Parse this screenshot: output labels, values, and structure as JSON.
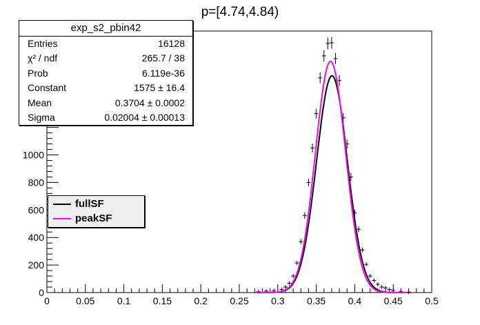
{
  "chart_data": {
    "type": "histogram",
    "title": "p=[4.74,4.84)",
    "xlabel": "",
    "ylabel": "",
    "xlim": [
      0,
      0.5
    ],
    "ylim": [
      0,
      1900
    ],
    "x_ticks": [
      "0",
      "0.05",
      "0.1",
      "0.15",
      "0.2",
      "0.25",
      "0.3",
      "0.35",
      "0.4",
      "0.45",
      "0.5"
    ],
    "y_ticks": [
      "0",
      "200",
      "400",
      "600",
      "800",
      "1000"
    ],
    "histogram": {
      "x": [
        0.275,
        0.285,
        0.295,
        0.305,
        0.31,
        0.315,
        0.32,
        0.325,
        0.33,
        0.335,
        0.34,
        0.345,
        0.35,
        0.355,
        0.36,
        0.365,
        0.37,
        0.375,
        0.38,
        0.385,
        0.39,
        0.395,
        0.4,
        0.405,
        0.41,
        0.415,
        0.42,
        0.425,
        0.43,
        0.435,
        0.44,
        0.445,
        0.45,
        0.46,
        0.47
      ],
      "y": [
        6,
        10,
        14,
        22,
        40,
        68,
        120,
        215,
        370,
        560,
        800,
        1050,
        1300,
        1560,
        1720,
        1810,
        1815,
        1700,
        1540,
        1270,
        1080,
        840,
        580,
        460,
        310,
        205,
        120,
        88,
        60,
        40,
        34,
        22,
        16,
        8,
        4
      ]
    },
    "series": [
      {
        "name": "fullSF",
        "color": "#000000",
        "mean": 0.3704,
        "sigma": 0.02004,
        "constant": 1575
      },
      {
        "name": "peakSF",
        "color": "#ff00ff",
        "mean": 0.3685,
        "sigma": 0.0196,
        "constant": 1680
      }
    ],
    "stats": {
      "name": "exp_s2_pbin42",
      "rows": [
        {
          "key": "Entries",
          "value": "16128"
        },
        {
          "key": "χ² / ndf",
          "value": "265.7 / 38"
        },
        {
          "key": "Prob",
          "value": "6.119e-36"
        },
        {
          "key": "Constant",
          "value": "1575 ± 16.4"
        },
        {
          "key": "Mean",
          "value": "0.3704 ± 0.0002"
        },
        {
          "key": "Sigma",
          "value": "0.02004 ± 0.00013"
        }
      ]
    },
    "legend": [
      {
        "label": "fullSF",
        "color": "#000000"
      },
      {
        "label": "peakSF",
        "color": "#ff00ff"
      }
    ]
  }
}
